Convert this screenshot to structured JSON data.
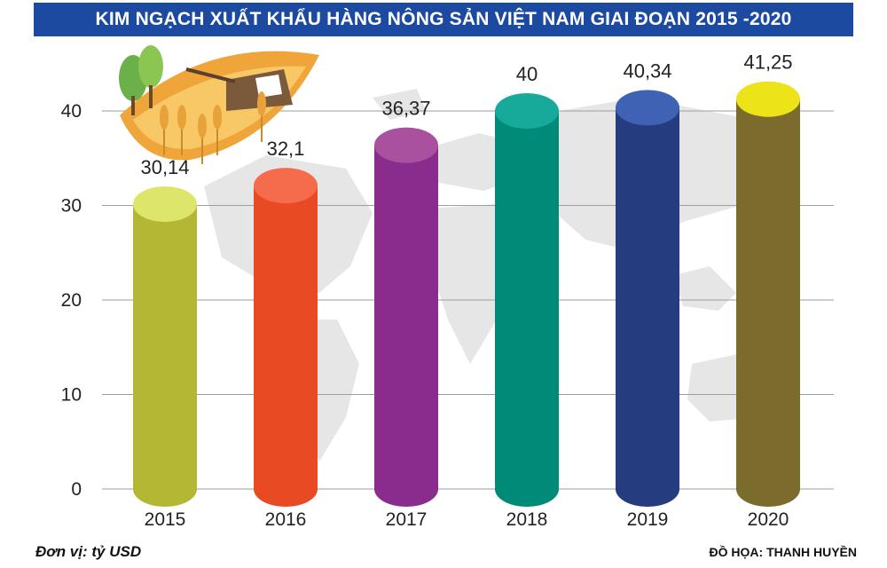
{
  "title": "KIM NGẠCH XUẤT KHẨU HÀNG NÔNG SẢN VIỆT NAM GIAI ĐOẠN 2015 -2020",
  "unit_note": "Đơn vị: tỷ USD",
  "credit": "ĐỒ HỌA: THANH HUYỀN",
  "colors": {
    "title_bg": "#1b4aa0",
    "grid": "#9e9e9e",
    "map": "#e6e6e6"
  },
  "chart_data": {
    "type": "bar",
    "title": "KIM NGẠCH XUẤT KHẨU HÀNG NÔNG SẢN VIỆT NAM GIAI ĐOẠN 2015 -2020",
    "xlabel": "",
    "ylabel": "",
    "ylim": [
      0,
      40
    ],
    "yticks": [
      0,
      10,
      20,
      30,
      40
    ],
    "grid": true,
    "categories": [
      "2015",
      "2016",
      "2017",
      "2018",
      "2019",
      "2020"
    ],
    "values": [
      30.14,
      32.1,
      36.37,
      40,
      40.34,
      41.25
    ],
    "value_labels": [
      "30,14",
      "32,1",
      "36,37",
      "40",
      "40,34",
      "41,25"
    ],
    "bar_colors": [
      {
        "body": "#b3b733",
        "top": "#dde56a"
      },
      {
        "body": "#e84a24",
        "top": "#f46c4c"
      },
      {
        "body": "#8a2b8e",
        "top": "#a9519f"
      },
      {
        "body": "#008a78",
        "top": "#17aa9a"
      },
      {
        "body": "#253c7e",
        "top": "#3f62b5"
      },
      {
        "body": "#7b6b2d",
        "top": "#ece318"
      }
    ]
  }
}
